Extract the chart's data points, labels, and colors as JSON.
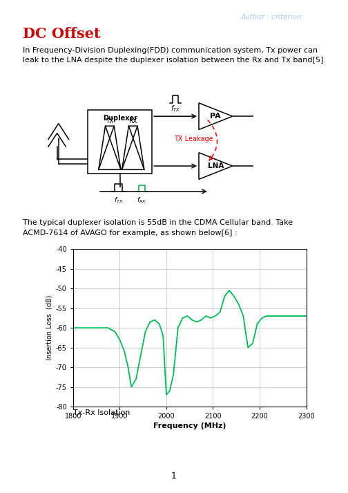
{
  "author_text": "Author : criterion",
  "author_color": "#a8c8e8",
  "title_text": "DC Offset",
  "title_color": "#cc0000",
  "body_text1": "In Frequency-Division Duplexing(FDD) communication system, Tx power can",
  "body_text2": "leak to the LNA despite the duplexer isolation between the Rx and Tx band[5].",
  "body_text3": "The typical duplexer isolation is 55dB in the CDMA Cellular band. Take",
  "body_text4": "ACMD-7614 of AVAGO for example, as shown below[6] :",
  "page_number": "1",
  "plot_xlabel": "Frequency (MHz)",
  "plot_ylabel": "Insertion Loss  (dB)",
  "plot_caption": "Tx-Rx Isolation",
  "plot_xlim": [
    1800,
    2300
  ],
  "plot_ylim": [
    -80,
    -40
  ],
  "plot_xticks": [
    1800,
    1900,
    2000,
    2100,
    2200,
    2300
  ],
  "plot_yticks": [
    -80,
    -75,
    -70,
    -65,
    -60,
    -55,
    -50,
    -45,
    -40
  ],
  "line_color": "#00bb55",
  "freq_data": [
    1800,
    1820,
    1840,
    1860,
    1875,
    1890,
    1900,
    1910,
    1918,
    1925,
    1935,
    1945,
    1955,
    1965,
    1975,
    1985,
    1993,
    2000,
    2007,
    2015,
    2025,
    2035,
    2045,
    2055,
    2065,
    2075,
    2085,
    2095,
    2105,
    2115,
    2125,
    2135,
    2145,
    2155,
    2165,
    2175,
    2185,
    2195,
    2205,
    2215,
    2225,
    2240,
    2260,
    2280,
    2300
  ],
  "loss_data": [
    -60,
    -60,
    -60,
    -60,
    -60,
    -61,
    -63,
    -66,
    -70,
    -75,
    -73,
    -67,
    -61,
    -58.5,
    -58,
    -59,
    -62,
    -77,
    -76,
    -72,
    -60,
    -57.5,
    -57,
    -58,
    -58.5,
    -58,
    -57,
    -57.5,
    -57,
    -56,
    -52,
    -50.5,
    -52,
    -54,
    -57,
    -65,
    -64,
    -59,
    -57.5,
    -57,
    -57,
    -57,
    -57,
    -57,
    -57
  ]
}
